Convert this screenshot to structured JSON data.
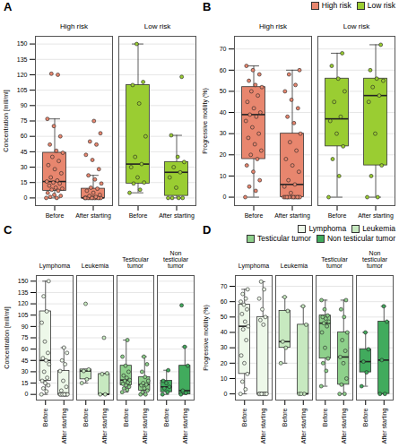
{
  "chart_data": [
    {
      "type": "boxplot",
      "title": "A",
      "y_label": "Concentration [mill/ml]",
      "categories": [
        "Before",
        "After starting"
      ],
      "ylim": [
        -7.5,
        157.5
      ],
      "yticks": [
        0,
        15,
        30,
        45,
        60,
        75,
        90,
        105,
        120,
        135,
        150
      ],
      "grid": true,
      "series": [
        {
          "name": "High risk",
          "color": "#E8866E",
          "boxes": [
            {
              "q1": 7,
              "median": 16,
              "q3": 44,
              "whisker_low": 0,
              "whisker_high": 77,
              "points": [
                0,
                0,
                1,
                2,
                3,
                5,
                7,
                8,
                9,
                10,
                12,
                14,
                15,
                16,
                17,
                20,
                24,
                28,
                32,
                36,
                40,
                44,
                46,
                52,
                60,
                70,
                77,
                120,
                121
              ]
            },
            {
              "q1": 0,
              "median": 0,
              "q3": 9,
              "whisker_low": 0,
              "whisker_high": 22,
              "points": [
                0,
                0,
                0,
                0,
                0,
                0,
                0,
                0,
                0,
                0,
                0,
                0,
                0,
                0,
                1,
                2,
                3,
                5,
                7,
                9,
                10,
                14,
                18,
                22,
                28,
                37,
                42,
                52,
                55,
                63,
                75
              ]
            }
          ]
        },
        {
          "name": "Low risk",
          "color": "#9ACD32",
          "boxes": [
            {
              "q1": 14,
              "median": 33,
              "q3": 110,
              "whisker_low": 5,
              "whisker_high": 150,
              "points": [
                5,
                8,
                14,
                15,
                20,
                30,
                33,
                40,
                60,
                92,
                110,
                113,
                150
              ]
            },
            {
              "q1": 2,
              "median": 25,
              "q3": 35,
              "whisker_low": 0,
              "whisker_high": 61,
              "points": [
                0,
                0,
                0,
                0,
                10,
                20,
                25,
                30,
                35,
                40,
                61,
                118
              ]
            }
          ]
        }
      ]
    },
    {
      "type": "boxplot",
      "title": "B",
      "y_label": "Progressive motility (%)",
      "categories": [
        "Before",
        "After starting"
      ],
      "ylim": [
        -4,
        76
      ],
      "yticks": [
        0,
        10,
        20,
        30,
        40,
        50,
        60,
        70
      ],
      "grid": true,
      "legend": "right",
      "series": [
        {
          "name": "High risk",
          "color": "#E8866E",
          "boxes": [
            {
              "q1": 18,
              "median": 39,
              "q3": 52,
              "whisker_low": 0,
              "whisker_high": 62,
              "points": [
                0,
                3,
                5,
                8,
                12,
                15,
                18,
                20,
                22,
                25,
                28,
                30,
                33,
                36,
                38,
                39,
                40,
                42,
                45,
                48,
                50,
                52,
                53,
                55,
                58,
                60,
                62
              ]
            },
            {
              "q1": 0,
              "median": 6,
              "q3": 30,
              "whisker_low": 0,
              "whisker_high": 60,
              "points": [
                0,
                0,
                0,
                0,
                0,
                0,
                0,
                0,
                0,
                0,
                0,
                0,
                2,
                5,
                6,
                8,
                12,
                15,
                18,
                22,
                26,
                30,
                35,
                38,
                42,
                46,
                50,
                53,
                58,
                60
              ]
            }
          ]
        },
        {
          "name": "Low risk",
          "color": "#9ACD32",
          "boxes": [
            {
              "q1": 24,
              "median": 37,
              "q3": 56,
              "whisker_low": 0,
              "whisker_high": 68,
              "points": [
                0,
                10,
                18,
                24,
                30,
                36,
                38,
                45,
                50,
                56,
                62,
                68
              ]
            },
            {
              "q1": 15,
              "median": 48,
              "q3": 56,
              "whisker_low": 0,
              "whisker_high": 72,
              "points": [
                0,
                0,
                10,
                15,
                30,
                45,
                48,
                52,
                55,
                56,
                60,
                72
              ]
            }
          ]
        }
      ]
    },
    {
      "type": "boxplot",
      "title": "C",
      "y_label": "Concentration [mill/ml]",
      "categories": [
        "Before",
        "After starting"
      ],
      "ylim": [
        -7.5,
        157.5
      ],
      "yticks": [
        0,
        15,
        30,
        45,
        60,
        75,
        90,
        105,
        120,
        135,
        150
      ],
      "grid": true,
      "series": [
        {
          "name": "Lymphoma",
          "color": "#EDF8E9",
          "boxes": [
            {
              "q1": 18,
              "median": 45,
              "q3": 110,
              "whisker_low": 0,
              "whisker_high": 150,
              "points": [
                0,
                4,
                8,
                12,
                15,
                18,
                22,
                30,
                40,
                45,
                48,
                55,
                70,
                95,
                110,
                130,
                150
              ]
            },
            {
              "q1": 0,
              "median": 0,
              "q3": 31,
              "whisker_low": 0,
              "whisker_high": 62,
              "points": [
                0,
                0,
                0,
                0,
                0,
                0,
                0,
                0,
                0,
                0,
                5,
                10,
                18,
                31,
                40,
                45,
                55,
                62
              ]
            }
          ]
        },
        {
          "name": "Leukemia",
          "color": "#C7E9C0",
          "boxes": [
            {
              "q1": 20,
              "median": 31,
              "q3": 33,
              "whisker_low": 15,
              "whisker_high": 33,
              "points": [
                15,
                20,
                31,
                33,
                120
              ]
            },
            {
              "q1": 0,
              "median": 0,
              "q3": 27,
              "whisker_low": 0,
              "whisker_high": 28,
              "points": [
                0,
                0,
                27,
                28,
                75
              ]
            }
          ]
        },
        {
          "name": "Testicular tumor",
          "color": "#8ED08B",
          "boxes": [
            {
              "q1": 12,
              "median": 19,
              "q3": 38,
              "whisker_low": 3,
              "whisker_high": 72,
              "points": [
                3,
                6,
                8,
                10,
                12,
                14,
                16,
                18,
                19,
                22,
                25,
                30,
                38,
                50,
                72
              ]
            },
            {
              "q1": 5,
              "median": 13,
              "q3": 23,
              "whisker_low": 0,
              "whisker_high": 50,
              "points": [
                0,
                0,
                3,
                5,
                8,
                12,
                13,
                15,
                18,
                23,
                30,
                40,
                50
              ]
            }
          ]
        },
        {
          "name": "Non testicular tumor",
          "color": "#41AB5D",
          "boxes": [
            {
              "q1": 3,
              "median": 10,
              "q3": 18,
              "whisker_low": 0,
              "whisker_high": 32,
              "points": [
                0,
                3,
                8,
                10,
                15,
                18,
                32
              ]
            },
            {
              "q1": 0,
              "median": 5,
              "q3": 38,
              "whisker_low": 0,
              "whisker_high": 63,
              "points": [
                0,
                2,
                5,
                38,
                63,
                118
              ]
            }
          ]
        }
      ]
    },
    {
      "type": "boxplot",
      "title": "D",
      "y_label": "Progressive motility (%)",
      "categories": [
        "Before",
        "After starting"
      ],
      "ylim": [
        -4,
        77
      ],
      "yticks": [
        0,
        10,
        20,
        30,
        40,
        50,
        60,
        70
      ],
      "grid": true,
      "legend": "right",
      "series": [
        {
          "name": "Lymphoma",
          "color": "#EDF8E9",
          "boxes": [
            {
              "q1": 13,
              "median": 44,
              "q3": 58,
              "whisker_low": 0,
              "whisker_high": 68,
              "points": [
                0,
                3,
                8,
                13,
                20,
                25,
                35,
                42,
                44,
                47,
                52,
                55,
                58,
                60,
                62,
                65,
                68
              ]
            },
            {
              "q1": 0,
              "median": 0,
              "q3": 50,
              "whisker_low": 0,
              "whisker_high": 73,
              "points": [
                0,
                0,
                0,
                0,
                0,
                0,
                0,
                0,
                0,
                45,
                48,
                50,
                55,
                62,
                68,
                73
              ]
            }
          ]
        },
        {
          "name": "Leukemia",
          "color": "#C7E9C0",
          "boxes": [
            {
              "q1": 30,
              "median": 34,
              "q3": 54,
              "whisker_low": 20,
              "whisker_high": 63,
              "points": [
                20,
                30,
                34,
                54,
                63
              ]
            },
            {
              "q1": 0,
              "median": 0,
              "q3": 45,
              "whisker_low": 0,
              "whisker_high": 57,
              "points": [
                0,
                0,
                0,
                45,
                57
              ]
            }
          ]
        },
        {
          "name": "Testicular tumor",
          "color": "#8ED08B",
          "boxes": [
            {
              "q1": 23,
              "median": 46,
              "q3": 51,
              "whisker_low": 5,
              "whisker_high": 61,
              "points": [
                5,
                15,
                20,
                23,
                30,
                40,
                44,
                46,
                47,
                49,
                50,
                51,
                55,
                61
              ]
            },
            {
              "q1": 6,
              "median": 24,
              "q3": 40,
              "whisker_low": 0,
              "whisker_high": 61,
              "points": [
                0,
                0,
                6,
                10,
                20,
                24,
                28,
                35,
                40,
                50,
                55,
                61
              ]
            }
          ]
        },
        {
          "name": "Non testicular tumor",
          "color": "#41AB5D",
          "boxes": [
            {
              "q1": 14,
              "median": 21,
              "q3": 29,
              "whisker_low": 5,
              "whisker_high": 40,
              "points": [
                5,
                14,
                21,
                29,
                40
              ]
            },
            {
              "q1": 0,
              "median": 22,
              "q3": 47,
              "whisker_low": 0,
              "whisker_high": 57,
              "points": [
                0,
                0,
                22,
                47,
                57
              ]
            }
          ]
        }
      ]
    }
  ]
}
